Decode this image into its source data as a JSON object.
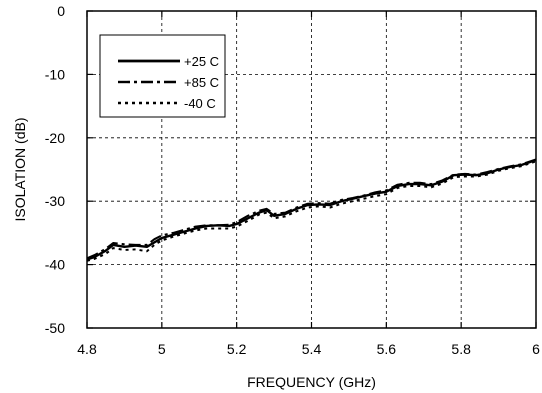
{
  "chart_data": {
    "type": "line",
    "title": "",
    "xlabel": "FREQUENCY (GHz)",
    "ylabel": "ISOLATION (dB)",
    "xlim": [
      4.8,
      6.0
    ],
    "ylim": [
      -50,
      0
    ],
    "xticks": [
      4.8,
      5.0,
      5.2,
      5.4,
      5.6,
      5.8,
      6.0
    ],
    "xtick_labels": [
      "4.8",
      "5",
      "5.2",
      "5.4",
      "5.6",
      "5.8",
      "6"
    ],
    "yticks": [
      0,
      -10,
      -20,
      -30,
      -40,
      -50
    ],
    "ytick_labels": [
      "0",
      "-10",
      "-20",
      "-30",
      "-40",
      "-50"
    ],
    "grid": true,
    "legend_position": "top-left",
    "series": [
      {
        "name": "+25 C",
        "style": "solid",
        "color": "#000000",
        "x": [
          4.8,
          4.82,
          4.85,
          4.87,
          4.9,
          4.93,
          4.96,
          4.98,
          5.0,
          5.03,
          5.06,
          5.09,
          5.12,
          5.15,
          5.18,
          5.2,
          5.23,
          5.26,
          5.28,
          5.3,
          5.33,
          5.36,
          5.39,
          5.42,
          5.45,
          5.48,
          5.51,
          5.54,
          5.57,
          5.6,
          5.63,
          5.66,
          5.69,
          5.72,
          5.75,
          5.78,
          5.81,
          5.84,
          5.87,
          5.9,
          5.93,
          5.96,
          6.0
        ],
        "y": [
          -39.2,
          -38.8,
          -37.8,
          -36.9,
          -37.2,
          -37.0,
          -37.2,
          -36.5,
          -35.8,
          -35.3,
          -34.8,
          -34.3,
          -33.9,
          -33.8,
          -33.9,
          -33.6,
          -32.7,
          -31.8,
          -31.4,
          -32.3,
          -32.0,
          -31.2,
          -30.6,
          -30.5,
          -30.6,
          -30.0,
          -29.6,
          -29.2,
          -28.8,
          -28.5,
          -27.6,
          -27.3,
          -27.3,
          -27.5,
          -26.9,
          -25.9,
          -25.8,
          -25.9,
          -25.6,
          -25.0,
          -24.6,
          -24.3,
          -23.5
        ]
      },
      {
        "name": "+85 C",
        "style": "dashdot",
        "color": "#000000",
        "x": [
          4.8,
          4.82,
          4.85,
          4.87,
          4.9,
          4.93,
          4.96,
          4.98,
          5.0,
          5.03,
          5.06,
          5.09,
          5.12,
          5.15,
          5.18,
          5.2,
          5.23,
          5.26,
          5.28,
          5.3,
          5.33,
          5.36,
          5.39,
          5.42,
          5.45,
          5.48,
          5.51,
          5.54,
          5.57,
          5.6,
          5.63,
          5.66,
          5.69,
          5.72,
          5.75,
          5.78,
          5.81,
          5.84,
          5.87,
          5.9,
          5.93,
          5.96,
          6.0
        ],
        "y": [
          -39.0,
          -38.5,
          -37.5,
          -36.6,
          -36.8,
          -36.9,
          -36.9,
          -36.0,
          -35.4,
          -35.0,
          -34.5,
          -34.0,
          -33.8,
          -33.8,
          -33.7,
          -33.3,
          -32.3,
          -31.5,
          -31.2,
          -32.0,
          -31.8,
          -31.0,
          -30.4,
          -30.3,
          -30.4,
          -29.8,
          -29.5,
          -29.1,
          -28.6,
          -28.3,
          -27.4,
          -27.1,
          -27.1,
          -27.3,
          -26.7,
          -25.8,
          -25.7,
          -25.8,
          -25.4,
          -24.9,
          -24.5,
          -24.2,
          -23.4
        ]
      },
      {
        "name": "-40 C",
        "style": "dotted",
        "color": "#000000",
        "x": [
          4.8,
          4.82,
          4.85,
          4.87,
          4.9,
          4.93,
          4.96,
          4.98,
          5.0,
          5.03,
          5.06,
          5.09,
          5.12,
          5.15,
          5.18,
          5.2,
          5.23,
          5.26,
          5.28,
          5.3,
          5.33,
          5.36,
          5.39,
          5.42,
          5.45,
          5.48,
          5.51,
          5.54,
          5.57,
          5.6,
          5.63,
          5.66,
          5.69,
          5.72,
          5.75,
          5.78,
          5.81,
          5.84,
          5.87,
          5.9,
          5.93,
          5.96,
          6.0
        ],
        "y": [
          -39.4,
          -39.1,
          -38.3,
          -37.4,
          -37.7,
          -37.6,
          -37.9,
          -36.9,
          -36.2,
          -35.6,
          -35.1,
          -34.6,
          -34.3,
          -34.3,
          -34.3,
          -34.0,
          -33.1,
          -32.1,
          -31.8,
          -32.7,
          -32.4,
          -31.6,
          -31.0,
          -30.8,
          -31.0,
          -30.4,
          -30.0,
          -29.6,
          -29.2,
          -28.9,
          -27.9,
          -27.6,
          -27.6,
          -27.8,
          -27.2,
          -26.2,
          -26.1,
          -26.1,
          -25.8,
          -25.2,
          -24.8,
          -24.5,
          -23.7
        ]
      }
    ]
  }
}
